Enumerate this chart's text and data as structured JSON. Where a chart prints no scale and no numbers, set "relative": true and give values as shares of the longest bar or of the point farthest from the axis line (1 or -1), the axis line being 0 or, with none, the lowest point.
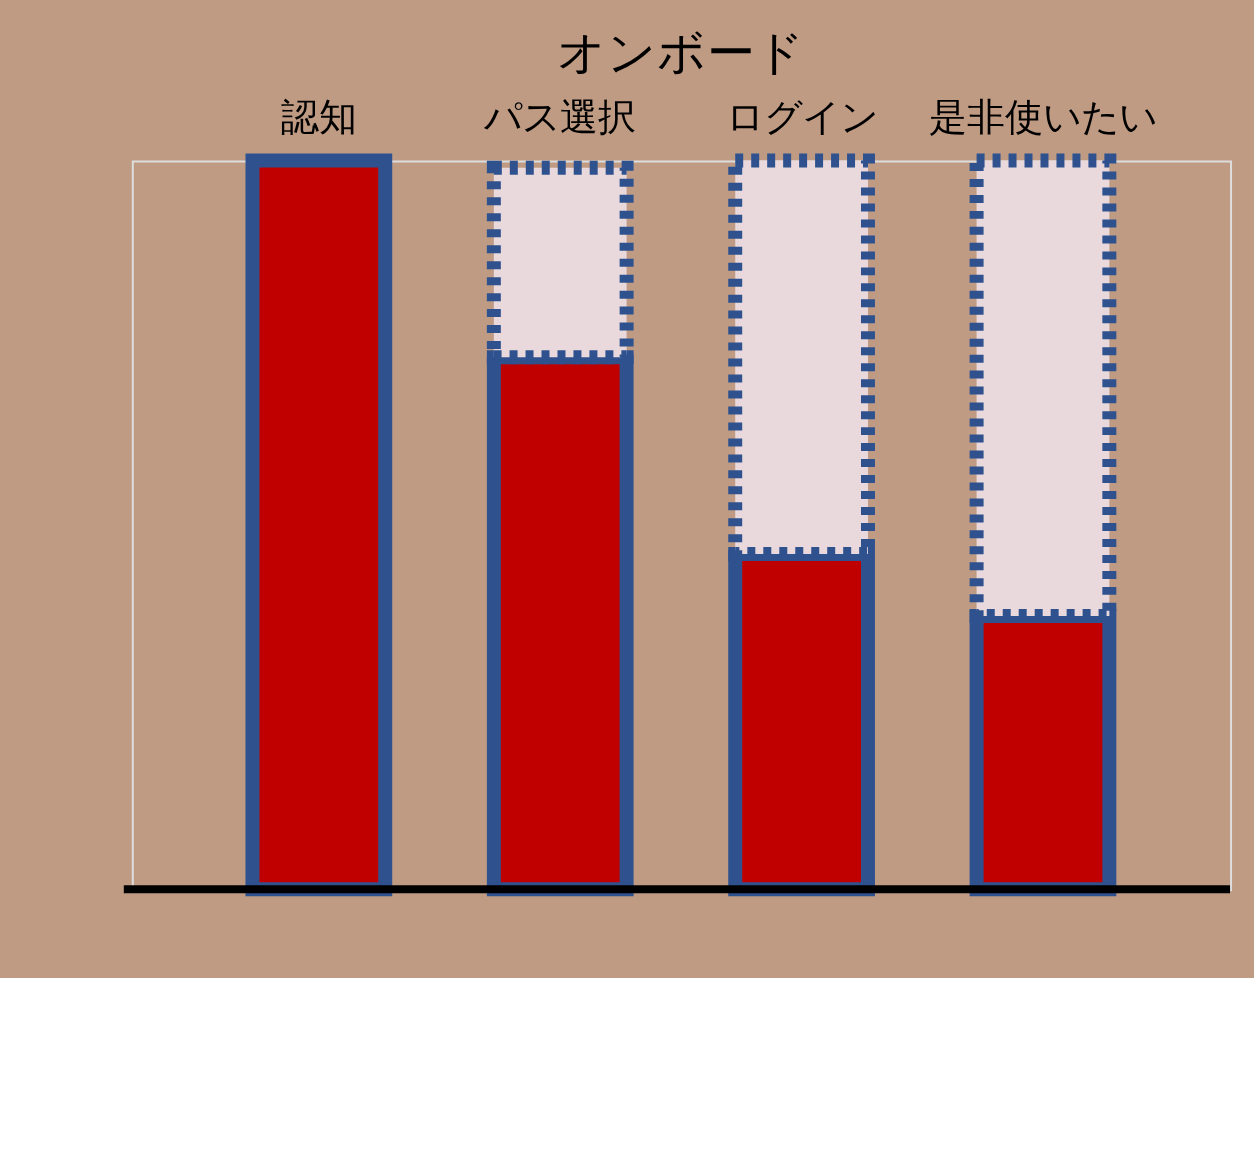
{
  "chart_data": {
    "type": "bar",
    "title": "オンボード",
    "relative": true,
    "stacked": true,
    "grid": false,
    "categories": [
      "認知",
      "パス選択",
      "ログイン",
      "是非使いたい"
    ],
    "series": [
      {
        "color": "#c00000",
        "values": [
          1,
          0.73,
          0.46,
          0.375
        ],
        "line_style": "solid"
      },
      {
        "color": "#ead9dc",
        "values": [
          null,
          0.26,
          0.54,
          0.625
        ],
        "line_style": "dotted"
      }
    ]
  }
}
